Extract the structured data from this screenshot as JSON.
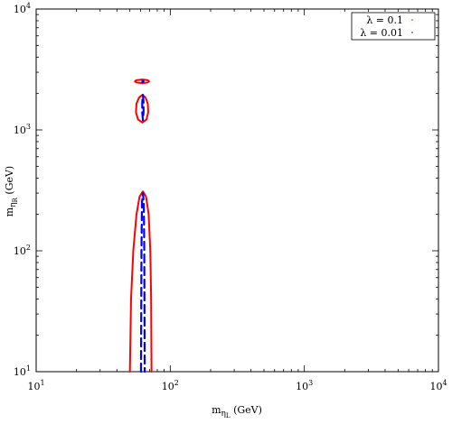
{
  "chart_data": {
    "type": "line",
    "title": "",
    "xlabel": {
      "base": "m",
      "sub1": "η",
      "sub2": "L",
      "unit": " (GeV)"
    },
    "ylabel": {
      "base": "m",
      "sub1": "η",
      "sub2": "R",
      "unit": " (GeV)"
    },
    "xscale": "log",
    "yscale": "log",
    "xlim": [
      10,
      10000
    ],
    "ylim": [
      10,
      10000
    ],
    "x_ticks": [
      {
        "value": 10,
        "base": "10",
        "exp": "1"
      },
      {
        "value": 100,
        "base": "10",
        "exp": "2"
      },
      {
        "value": 1000,
        "base": "10",
        "exp": "3"
      },
      {
        "value": 10000,
        "base": "10",
        "exp": "4"
      }
    ],
    "y_ticks": [
      {
        "value": 10,
        "base": "10",
        "exp": "1"
      },
      {
        "value": 100,
        "base": "10",
        "exp": "2"
      },
      {
        "value": 1000,
        "base": "10",
        "exp": "3"
      },
      {
        "value": 10000,
        "base": "10",
        "exp": "4"
      }
    ],
    "grid": false,
    "legend_position": "top-right",
    "series": [
      {
        "name": "λ = 0.1",
        "color": "#ff0000",
        "style": "solid",
        "contours": [
          {
            "points": [
              [
                50.0,
                10
              ],
              [
                51.0,
                40
              ],
              [
                53.0,
                100
              ],
              [
                56.0,
                200
              ],
              [
                59.0,
                280
              ],
              [
                62.5,
                310
              ],
              [
                66.0,
                280
              ],
              [
                69.0,
                200
              ],
              [
                71.0,
                100
              ],
              [
                72.0,
                40
              ],
              [
                72.5,
                10
              ]
            ]
          },
          {
            "points": [
              [
                62.0,
                1150
              ],
              [
                57.5,
                1220
              ],
              [
                55.5,
                1400
              ],
              [
                56.0,
                1650
              ],
              [
                58.5,
                1850
              ],
              [
                62.0,
                1950
              ],
              [
                65.5,
                1850
              ],
              [
                68.0,
                1650
              ],
              [
                68.5,
                1400
              ],
              [
                66.5,
                1220
              ],
              [
                62.0,
                1150
              ]
            ]
          },
          {
            "points": [
              [
                62.0,
                2440
              ],
              [
                56.0,
                2470
              ],
              [
                54.5,
                2520
              ],
              [
                56.0,
                2580
              ],
              [
                62.0,
                2610
              ],
              [
                68.0,
                2580
              ],
              [
                69.5,
                2520
              ],
              [
                68.0,
                2470
              ],
              [
                62.0,
                2440
              ]
            ]
          }
        ]
      },
      {
        "name": "λ = 0.01",
        "color": "#0000ff",
        "style": "dashed",
        "contours": [
          {
            "points": [
              [
                60.5,
                10
              ],
              [
                61.0,
                100
              ],
              [
                61.5,
                250
              ],
              [
                62.5,
                300
              ],
              [
                63.5,
                250
              ],
              [
                64.0,
                100
              ],
              [
                64.5,
                10
              ]
            ]
          },
          {
            "points": [
              [
                62.5,
                1200
              ],
              [
                61.8,
                1400
              ],
              [
                61.8,
                1700
              ],
              [
                62.5,
                1950
              ],
              [
                63.2,
                1700
              ],
              [
                63.2,
                1400
              ],
              [
                62.5,
                1200
              ]
            ]
          },
          {
            "points": [
              [
                62.5,
                2480
              ],
              [
                61.8,
                2520
              ],
              [
                62.5,
                2560
              ],
              [
                63.2,
                2520
              ],
              [
                62.5,
                2480
              ]
            ]
          }
        ]
      }
    ]
  }
}
